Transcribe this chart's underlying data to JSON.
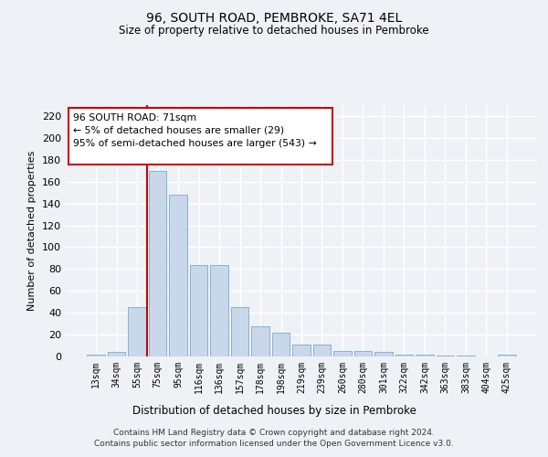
{
  "title": "96, SOUTH ROAD, PEMBROKE, SA71 4EL",
  "subtitle": "Size of property relative to detached houses in Pembroke",
  "xlabel": "Distribution of detached houses by size in Pembroke",
  "ylabel": "Number of detached properties",
  "categories": [
    "13sqm",
    "34sqm",
    "55sqm",
    "75sqm",
    "95sqm",
    "116sqm",
    "136sqm",
    "157sqm",
    "178sqm",
    "198sqm",
    "219sqm",
    "239sqm",
    "260sqm",
    "280sqm",
    "301sqm",
    "322sqm",
    "342sqm",
    "363sqm",
    "383sqm",
    "404sqm",
    "425sqm"
  ],
  "values": [
    2,
    4,
    45,
    170,
    148,
    84,
    84,
    45,
    28,
    22,
    11,
    11,
    5,
    5,
    4,
    2,
    2,
    1,
    1,
    0,
    2
  ],
  "bar_color": "#c8d8ea",
  "bar_edge_color": "#7aaac8",
  "vline_x_index": 2.5,
  "vline_color": "#cc0000",
  "annotation_line1": "96 SOUTH ROAD: 71sqm",
  "annotation_line2": "← 5% of detached houses are smaller (29)",
  "annotation_line3": "95% of semi-detached houses are larger (543) →",
  "annotation_box_color": "#ffffff",
  "annotation_box_edge_color": "#cc0000",
  "ylim": [
    0,
    230
  ],
  "yticks": [
    0,
    20,
    40,
    60,
    80,
    100,
    120,
    140,
    160,
    180,
    200,
    220
  ],
  "background_color": "#eef2f7",
  "grid_color": "#ffffff",
  "footer": "Contains HM Land Registry data © Crown copyright and database right 2024.\nContains public sector information licensed under the Open Government Licence v3.0."
}
